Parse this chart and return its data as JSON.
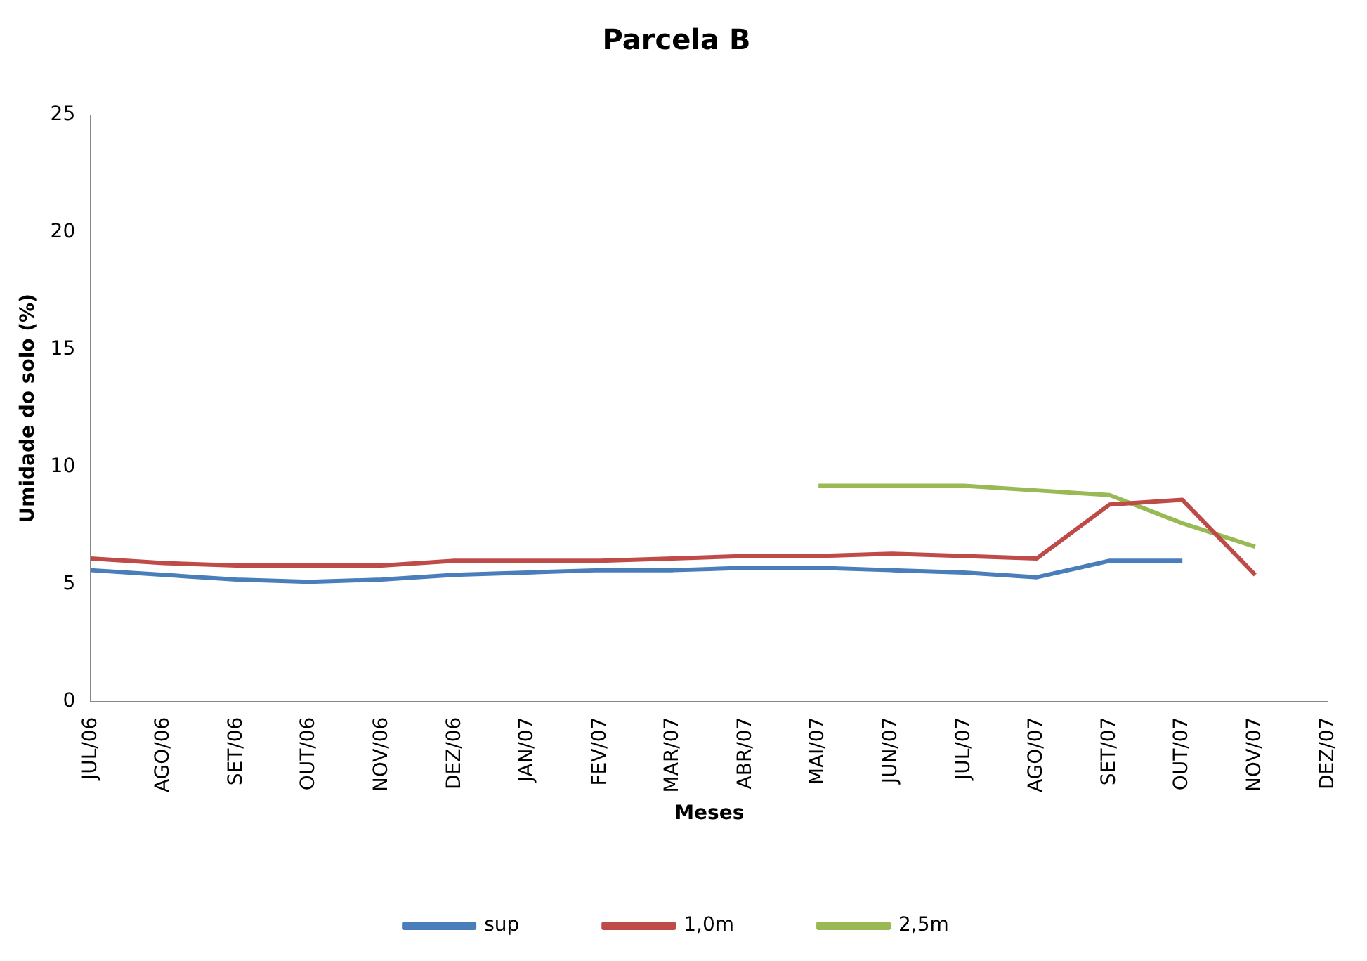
{
  "chart_data": {
    "type": "line",
    "title": "Parcela B",
    "xlabel": "Meses",
    "ylabel": "Umidade do solo (%)",
    "categories": [
      "JUL/06",
      "AGO/06",
      "SET/06",
      "OUT/06",
      "NOV/06",
      "DEZ/06",
      "JAN/07",
      "FEV/07",
      "MAR/07",
      "ABR/07",
      "MAI/07",
      "JUN/07",
      "JUL/07",
      "AGO/07",
      "SET/07",
      "OUT/07",
      "NOV/07",
      "DEZ/07"
    ],
    "series": [
      {
        "name": "sup",
        "color": "#4a7ebb",
        "values": [
          5.6,
          5.4,
          5.2,
          5.1,
          5.2,
          5.4,
          5.5,
          5.6,
          5.6,
          5.7,
          5.7,
          5.6,
          5.5,
          5.3,
          6.0,
          6.0,
          null,
          null
        ]
      },
      {
        "name": "1,0m",
        "color": "#be4b48",
        "values": [
          6.1,
          5.9,
          5.8,
          5.8,
          5.8,
          6.0,
          6.0,
          6.0,
          6.1,
          6.2,
          6.2,
          6.3,
          6.2,
          6.1,
          8.4,
          8.6,
          5.4,
          null
        ]
      },
      {
        "name": "2,5m",
        "color": "#98b954",
        "values": [
          null,
          null,
          null,
          null,
          null,
          null,
          null,
          null,
          null,
          null,
          9.2,
          9.2,
          9.2,
          9.0,
          8.8,
          7.6,
          6.6,
          null
        ]
      }
    ],
    "ylim": [
      0,
      25
    ],
    "yticks": [
      0,
      5,
      10,
      15,
      20,
      25
    ],
    "grid": false,
    "legend": "bottom",
    "marker": "none",
    "line_style": "solid"
  }
}
